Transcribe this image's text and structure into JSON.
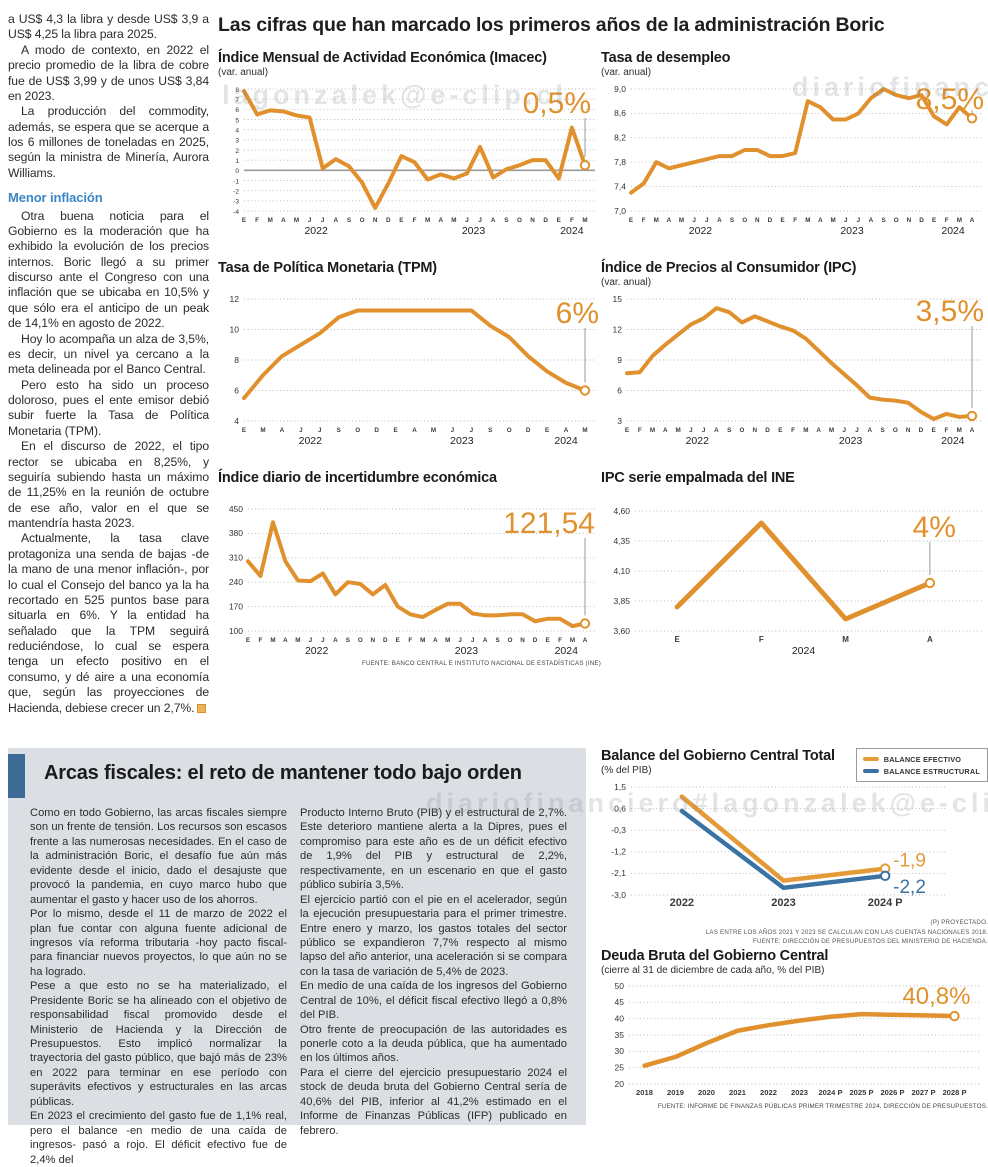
{
  "page": {
    "main_title": "Las cifras que han marcado los primeros años de la administración Boric",
    "watermarks": [
      "lagonzalek@e-clip.cl",
      "diariofinancie",
      "diariofinanciero#lagonzalek@e-clip.cl"
    ]
  },
  "colors": {
    "orange": "#E0912E",
    "blue": "#3A72A3",
    "panel_bg": "#dbdfe4",
    "accent_bar": "#3e6b96",
    "subhead_blue": "#3b86c6"
  },
  "article": {
    "subhead": "Menor inflación",
    "paragraphs": [
      "a US$ 4,3 la libra y desde US$ 3,9 a US$ 4,25 la libra para 2025.",
      "A modo de contexto, en 2022 el precio promedio de la libra de cobre fue de US$ 3,99 y de unos US$ 3,84 en 2023.",
      "La producción del commodity, además, se espera que se acerque a los 6 millones de toneladas en 2025, según la ministra de Minería, Aurora Williams.",
      "Otra buena noticia para el Gobierno es la moderación que ha exhibido la evolución de los precios internos. Boric llegó a su primer discurso ante el Congreso con una inflación que se ubicaba en 10,5% y que sólo era el anticipo de un peak de 14,1% en agosto de 2022.",
      "Hoy lo acompaña un alza de 3,5%, es decir, un nivel ya cercano a la meta delineada por el Banco Central.",
      "Pero esto ha sido un proceso doloroso, pues el ente emisor debió subir fuerte la Tasa de Política Monetaria (TPM).",
      "En el discurso de 2022, el tipo rector se ubicaba en 8,25%, y seguiría subiendo hasta un máximo de 11,25% en la reunión de octubre de ese año, valor en el que se mantendría hasta 2023.",
      "Actualmente, la tasa clave protagoniza una senda de bajas -de la mano de una menor inflación-, por lo cual el Consejo del banco ya la ha recortado en 525 puntos base para situarla en 6%. Y la entidad ha señalado que la TPM seguirá reduciéndose, lo cual se espera tenga un efecto positivo en el consumo, y dé aire a una economía que, según las proyecciones de Hacienda, debiese crecer un 2,7%."
    ]
  },
  "fiscal_box": {
    "title": "Arcas fiscales: el reto de mantener todo bajo orden",
    "col1": [
      "Como en todo Gobierno, las arcas fiscales siempre son un frente de tensión. Los recursos son escasos frente a las numerosas necesidades. En el caso de la administración Boric, el desafío fue aún más evidente desde el inicio, dado el desajuste que provocó la pandemia, en cuyo marco hubo que aumentar el gasto y hacer uso de los ahorros.",
      "Por lo mismo, desde el 11 de marzo de 2022 el plan fue contar con alguna fuente adicional de ingresos vía reforma tributaria -hoy pacto fiscal- para financiar nuevos proyectos, lo que aún no se ha logrado.",
      "Pese a que esto no se ha materializado, el Presidente Boric se ha alineado con el objetivo de responsabilidad fiscal promovido desde el Ministerio de Hacienda y la Dirección de Presupuestos. Esto implicó normalizar la trayectoria del gasto público, que bajó más de 23% en 2022 para terminar en ese período con superávits efectivos y estructurales en las arcas públicas.",
      "En 2023 el crecimiento del gasto fue de 1,1% real, pero el balance -en medio de una caída de ingresos- pasó a rojo. El déficit efectivo fue de 2,4% del"
    ],
    "col2": [
      "Producto Interno Bruto (PIB) y el estructural de 2,7%. Este deterioro mantiene alerta a la Dipres, pues el compromiso para este año es de un déficit efectivo de 1,9% del PIB y estructural de 2,2%, respectivamente, en un escenario en que el gasto público subiría 3,5%.",
      "El ejercicio partió con el pie en el acelerador, según la ejecución presupuestaria para el primer trimestre. Entre enero y marzo, los gastos totales del sector público se expandieron 7,7% respecto al mismo lapso del año anterior, una aceleración si se compara con la tasa de variación de 5,4% de 2023.",
      "En medio de una caída de los ingresos del Gobierno Central de 10%, el déficit fiscal efectivo llegó a 0,8% del PIB.",
      "Otro frente de preocupación de las autoridades es ponerle coto a la deuda pública, que ha aumentado en los últimos años.",
      "Para el cierre del ejercicio presupuestario 2024 el stock de deuda bruta del Gobierno Central sería de 40,6% del PIB, inferior al 41,2% estimado en el Informe de Finanzas Públicas (IFP) publicado en febrero."
    ]
  },
  "chart_data": [
    {
      "type": "line",
      "title": "Índice Mensual de Actividad Económica (Imacec)",
      "subtitle": "(var. anual)",
      "ylim": [
        -4,
        8
      ],
      "zero_line": true,
      "ytick_font": 6.6,
      "margins": {
        "l": 26,
        "r": 16,
        "t": 10,
        "b": 26
      },
      "y_ticks": [
        {
          "label": "-4",
          "v": -4
        },
        {
          "label": "-3",
          "v": -3
        },
        {
          "label": "-2",
          "v": -2
        },
        {
          "label": "-1",
          "v": -1
        },
        {
          "label": "0",
          "v": 0
        },
        {
          "label": "1",
          "v": 1
        },
        {
          "label": "2",
          "v": 2
        },
        {
          "label": "3",
          "v": 3
        },
        {
          "label": "4",
          "v": 4
        },
        {
          "label": "5",
          "v": 5
        },
        {
          "label": "6",
          "v": 6
        },
        {
          "label": "7",
          "v": 7
        },
        {
          "label": "8",
          "v": 8
        }
      ],
      "x_labels": [
        "E",
        "F",
        "M",
        "A",
        "M",
        "J",
        "J",
        "A",
        "S",
        "O",
        "N",
        "D",
        "E",
        "F",
        "M",
        "A",
        "M",
        "J",
        "J",
        "A",
        "S",
        "O",
        "N",
        "D",
        "E",
        "F",
        "M"
      ],
      "year_labels": [
        {
          "text": "2022",
          "i": 5.5
        },
        {
          "text": "2023",
          "i": 17.5
        },
        {
          "text": "2024",
          "i": 25
        }
      ],
      "series": [
        {
          "name": "Imacec",
          "values": [
            7.8,
            5.5,
            5.9,
            5.8,
            5.4,
            5.2,
            0.2,
            1.1,
            0.4,
            -1.2,
            -3.7,
            -1.3,
            1.4,
            0.8,
            -0.9,
            -0.4,
            -0.8,
            -0.3,
            2.3,
            -0.7,
            0.1,
            0.5,
            1.0,
            1.0,
            -0.8,
            4.2,
            0.5
          ],
          "end_circle": true
        }
      ],
      "annotation": {
        "text": "0,5%",
        "size": 30,
        "dx": 6,
        "y": 34,
        "connector": true
      }
    },
    {
      "type": "line",
      "title": "Tasa de desempleo",
      "subtitle": "(var. anual)",
      "ylim": [
        7.0,
        9.0
      ],
      "margins": {
        "l": 30,
        "r": 16,
        "t": 10,
        "b": 26
      },
      "y_ticks": [
        {
          "label": "7,0",
          "v": 7.0
        },
        {
          "label": "7,4",
          "v": 7.4
        },
        {
          "label": "7,8",
          "v": 7.8
        },
        {
          "label": "8,2",
          "v": 8.2
        },
        {
          "label": "8,6",
          "v": 8.6
        },
        {
          "label": "9,0",
          "v": 9.0
        }
      ],
      "x_labels": [
        "E",
        "F",
        "M",
        "A",
        "M",
        "J",
        "J",
        "A",
        "S",
        "O",
        "N",
        "D",
        "E",
        "F",
        "M",
        "A",
        "M",
        "J",
        "J",
        "A",
        "S",
        "O",
        "N",
        "D",
        "E",
        "F",
        "M",
        "A"
      ],
      "year_labels": [
        {
          "text": "2022",
          "i": 5.5
        },
        {
          "text": "2023",
          "i": 17.5
        },
        {
          "text": "2024",
          "i": 25.5
        }
      ],
      "series": [
        {
          "name": "Tasa de desempleo",
          "values": [
            7.3,
            7.45,
            7.8,
            7.7,
            7.75,
            7.8,
            7.85,
            7.9,
            7.9,
            8.0,
            8.0,
            7.9,
            7.9,
            7.95,
            8.8,
            8.7,
            8.5,
            8.5,
            8.6,
            8.85,
            9.0,
            8.9,
            8.85,
            8.9,
            8.55,
            8.42,
            8.7,
            8.52
          ],
          "end_circle": true
        }
      ],
      "annotation": {
        "text": "8,5%",
        "size": 30,
        "dx": 12,
        "y": 30,
        "connector": true
      }
    },
    {
      "type": "line",
      "title": "Tasa de Política Monetaria (TPM)",
      "ylim": [
        4,
        12
      ],
      "margins": {
        "l": 26,
        "r": 16,
        "t": 10,
        "b": 26
      },
      "y_ticks": [
        {
          "label": "4",
          "v": 4
        },
        {
          "label": "6",
          "v": 6
        },
        {
          "label": "8",
          "v": 8
        },
        {
          "label": "10",
          "v": 10
        },
        {
          "label": "12",
          "v": 12
        }
      ],
      "x_labels": [
        "E",
        "M",
        "A",
        "J",
        "J",
        "S",
        "O",
        "D",
        "E",
        "A",
        "M",
        "J",
        "J",
        "S",
        "O",
        "D",
        "E",
        "A",
        "M"
      ],
      "year_labels": [
        {
          "text": "2022",
          "i": 3.5
        },
        {
          "text": "2023",
          "i": 11.5
        },
        {
          "text": "2024",
          "i": 17
        }
      ],
      "series": [
        {
          "name": "TPM",
          "values": [
            5.5,
            7.0,
            8.25,
            9.0,
            9.75,
            10.8,
            11.25,
            11.25,
            11.25,
            11.25,
            11.25,
            11.25,
            11.25,
            10.25,
            9.5,
            8.25,
            7.25,
            6.5,
            6.0
          ],
          "end_circle": true
        }
      ],
      "annotation": {
        "text": "6%",
        "size": 30,
        "dx": 14,
        "y": 34,
        "connector": true
      }
    },
    {
      "type": "line",
      "title": "Índice de Precios al Consumidor (IPC)",
      "subtitle": "(var. anual)",
      "ylim": [
        3,
        15
      ],
      "margins": {
        "l": 26,
        "r": 16,
        "t": 10,
        "b": 26
      },
      "y_ticks": [
        {
          "label": "3",
          "v": 3
        },
        {
          "label": "6",
          "v": 6
        },
        {
          "label": "9",
          "v": 9
        },
        {
          "label": "12",
          "v": 12
        },
        {
          "label": "15",
          "v": 15
        }
      ],
      "x_labels": [
        "E",
        "F",
        "M",
        "A",
        "M",
        "J",
        "J",
        "A",
        "S",
        "O",
        "N",
        "D",
        "E",
        "F",
        "M",
        "A",
        "M",
        "J",
        "J",
        "A",
        "S",
        "O",
        "N",
        "D",
        "E",
        "F",
        "M",
        "A"
      ],
      "year_labels": [
        {
          "text": "2022",
          "i": 5.5
        },
        {
          "text": "2023",
          "i": 17.5
        },
        {
          "text": "2024",
          "i": 25.5
        }
      ],
      "series": [
        {
          "name": "IPC",
          "values": [
            7.7,
            7.8,
            9.4,
            10.5,
            11.5,
            12.5,
            13.1,
            14.1,
            13.7,
            12.7,
            13.3,
            12.8,
            12.3,
            11.9,
            11.1,
            9.9,
            8.7,
            7.6,
            6.5,
            5.3,
            5.1,
            5.0,
            4.8,
            3.9,
            3.2,
            3.7,
            3.4,
            3.5
          ],
          "end_circle": true
        }
      ],
      "annotation": {
        "text": "3,5%",
        "size": 30,
        "dx": 12,
        "y": 32,
        "connector": true
      }
    },
    {
      "type": "line",
      "title": "Índice diario de incertidumbre económica",
      "ylim": [
        100,
        450
      ],
      "margins": {
        "l": 30,
        "r": 16,
        "t": 10,
        "b": 26
      },
      "y_ticks": [
        {
          "label": "100",
          "v": 100
        },
        {
          "label": "170",
          "v": 170
        },
        {
          "label": "240",
          "v": 240
        },
        {
          "label": "310",
          "v": 310
        },
        {
          "label": "380",
          "v": 380
        },
        {
          "label": "450",
          "v": 450
        }
      ],
      "x_labels": [
        "E",
        "F",
        "M",
        "A",
        "M",
        "J",
        "J",
        "A",
        "S",
        "O",
        "N",
        "D",
        "E",
        "F",
        "M",
        "A",
        "M",
        "J",
        "J",
        "A",
        "S",
        "O",
        "N",
        "D",
        "E",
        "F",
        "M",
        "A"
      ],
      "year_labels": [
        {
          "text": "2022",
          "i": 5.5
        },
        {
          "text": "2023",
          "i": 17.5
        },
        {
          "text": "2024",
          "i": 25.5
        }
      ],
      "series": [
        {
          "name": "Incertidumbre económica",
          "values": [
            300,
            258,
            412,
            300,
            245,
            243,
            265,
            205,
            240,
            235,
            205,
            232,
            170,
            148,
            140,
            160,
            178,
            178,
            150,
            145,
            145,
            148,
            148,
            128,
            135,
            135,
            114,
            121.54
          ],
          "end_circle": true
        }
      ],
      "annotation": {
        "text": "121,54",
        "size": 30,
        "dx": 10,
        "y": 34,
        "connector": true
      },
      "source": "FUENTE: BANCO CENTRAL E INSTITUTO NACIONAL DE ESTADÍSTICAS (INE)"
    },
    {
      "type": "line",
      "title": "IPC serie empalmada del INE",
      "ylim": [
        3.6,
        4.6
      ],
      "x_mode": "center",
      "xlabel_font": 8,
      "margins": {
        "l": 34,
        "r": 16,
        "t": 12,
        "b": 26
      },
      "y_ticks": [
        {
          "label": "3,60",
          "v": 3.6
        },
        {
          "label": "3,85",
          "v": 3.85
        },
        {
          "label": "4,10",
          "v": 4.1
        },
        {
          "label": "4,35",
          "v": 4.35
        },
        {
          "label": "4,60",
          "v": 4.6
        }
      ],
      "x_labels": [
        "E",
        "F",
        "M",
        "A"
      ],
      "year_labels": [
        {
          "text": "2024",
          "i": 1.5
        }
      ],
      "series": [
        {
          "name": "IPC empalmado",
          "values": [
            3.8,
            4.5,
            3.7,
            4.0
          ],
          "width": 5,
          "end_circle": true
        }
      ],
      "annotation": {
        "text": "4%",
        "size": 30,
        "dx": 26,
        "y": 38,
        "connector": true
      }
    },
    {
      "type": "line",
      "title": "Balance del Gobierno Central Total",
      "subtitle": "(% del PIB)",
      "ylim": [
        -3.0,
        1.5
      ],
      "x_mode": "center",
      "xlabel_font": 11,
      "margins": {
        "l": 30,
        "r": 52,
        "t": 10,
        "b": 20
      },
      "y_ticks": [
        {
          "label": "1,5",
          "v": 1.5
        },
        {
          "label": "0,6",
          "v": 0.6
        },
        {
          "label": "-0,3",
          "v": -0.3
        },
        {
          "label": "-1,2",
          "v": -1.2
        },
        {
          "label": "-2,1",
          "v": -2.1
        },
        {
          "label": "-3,0",
          "v": -3.0
        }
      ],
      "x_labels": [
        "2022",
        "2023",
        "2024 P"
      ],
      "series": [
        {
          "name": "Balance efectivo",
          "color": "#E59A38",
          "values": [
            1.1,
            -2.4,
            -1.9
          ],
          "width": 4.5,
          "end_circle": true,
          "end_label": {
            "text": "-1,9",
            "dy": -2
          }
        },
        {
          "name": "Balance estructural",
          "color": "#3A72A3",
          "values": [
            0.5,
            -2.7,
            -2.2
          ],
          "width": 4.5,
          "end_circle": true,
          "end_label": {
            "text": "-2,2",
            "dy": 17
          }
        }
      ],
      "legend": [
        {
          "label": "BALANCE EFECTIVO",
          "color": "#E59A38"
        },
        {
          "label": "BALANCE ESTRUCTURAL",
          "color": "#3A72A3"
        }
      ],
      "notes": [
        "(P) PROYECTADO.",
        "LAS ENTRE LOS AÑOS 2021 Y 2023 SE CALCULAN CON LAS CUENTAS NACIONALES 2018.",
        "FUENTE: DIRECCIÓN DE PRESUPUESTOS DEL MINISTERIO DE HACIENDA."
      ]
    },
    {
      "type": "line",
      "title": "Deuda Bruta del Gobierno Central",
      "subtitle": "(cierre al 31 de diciembre de cada año, % del PIB)",
      "ylim": [
        20,
        50
      ],
      "x_mode": "center",
      "xlabel_font": 7.6,
      "margins": {
        "l": 28,
        "r": 18,
        "t": 8,
        "b": 16
      },
      "y_ticks": [
        {
          "label": "20",
          "v": 20
        },
        {
          "label": "25",
          "v": 25
        },
        {
          "label": "30",
          "v": 30
        },
        {
          "label": "35",
          "v": 35
        },
        {
          "label": "40",
          "v": 40
        },
        {
          "label": "45",
          "v": 45
        },
        {
          "label": "50",
          "v": 50
        }
      ],
      "x_labels": [
        "2018",
        "2019",
        "2020",
        "2021",
        "2022",
        "2023",
        "2024 P",
        "2025 P",
        "2026 P",
        "2027 P",
        "2028 P"
      ],
      "series": [
        {
          "name": "Deuda bruta",
          "values": [
            25.6,
            28.3,
            32.5,
            36.3,
            38.0,
            39.4,
            40.6,
            41.4,
            41.2,
            41.0,
            40.8
          ],
          "width": 4.5,
          "end_circle": true
        }
      ],
      "annotation": {
        "text": "40,8%",
        "size": 24,
        "dx": 16,
        "y": 26,
        "connector": false
      },
      "source": "FUENTE: INFORME DE FINANZAS PÚBLICAS PRIMER TRIMESTRE 2024, DIRECCIÓN DE PRESUPUESTOS."
    }
  ]
}
